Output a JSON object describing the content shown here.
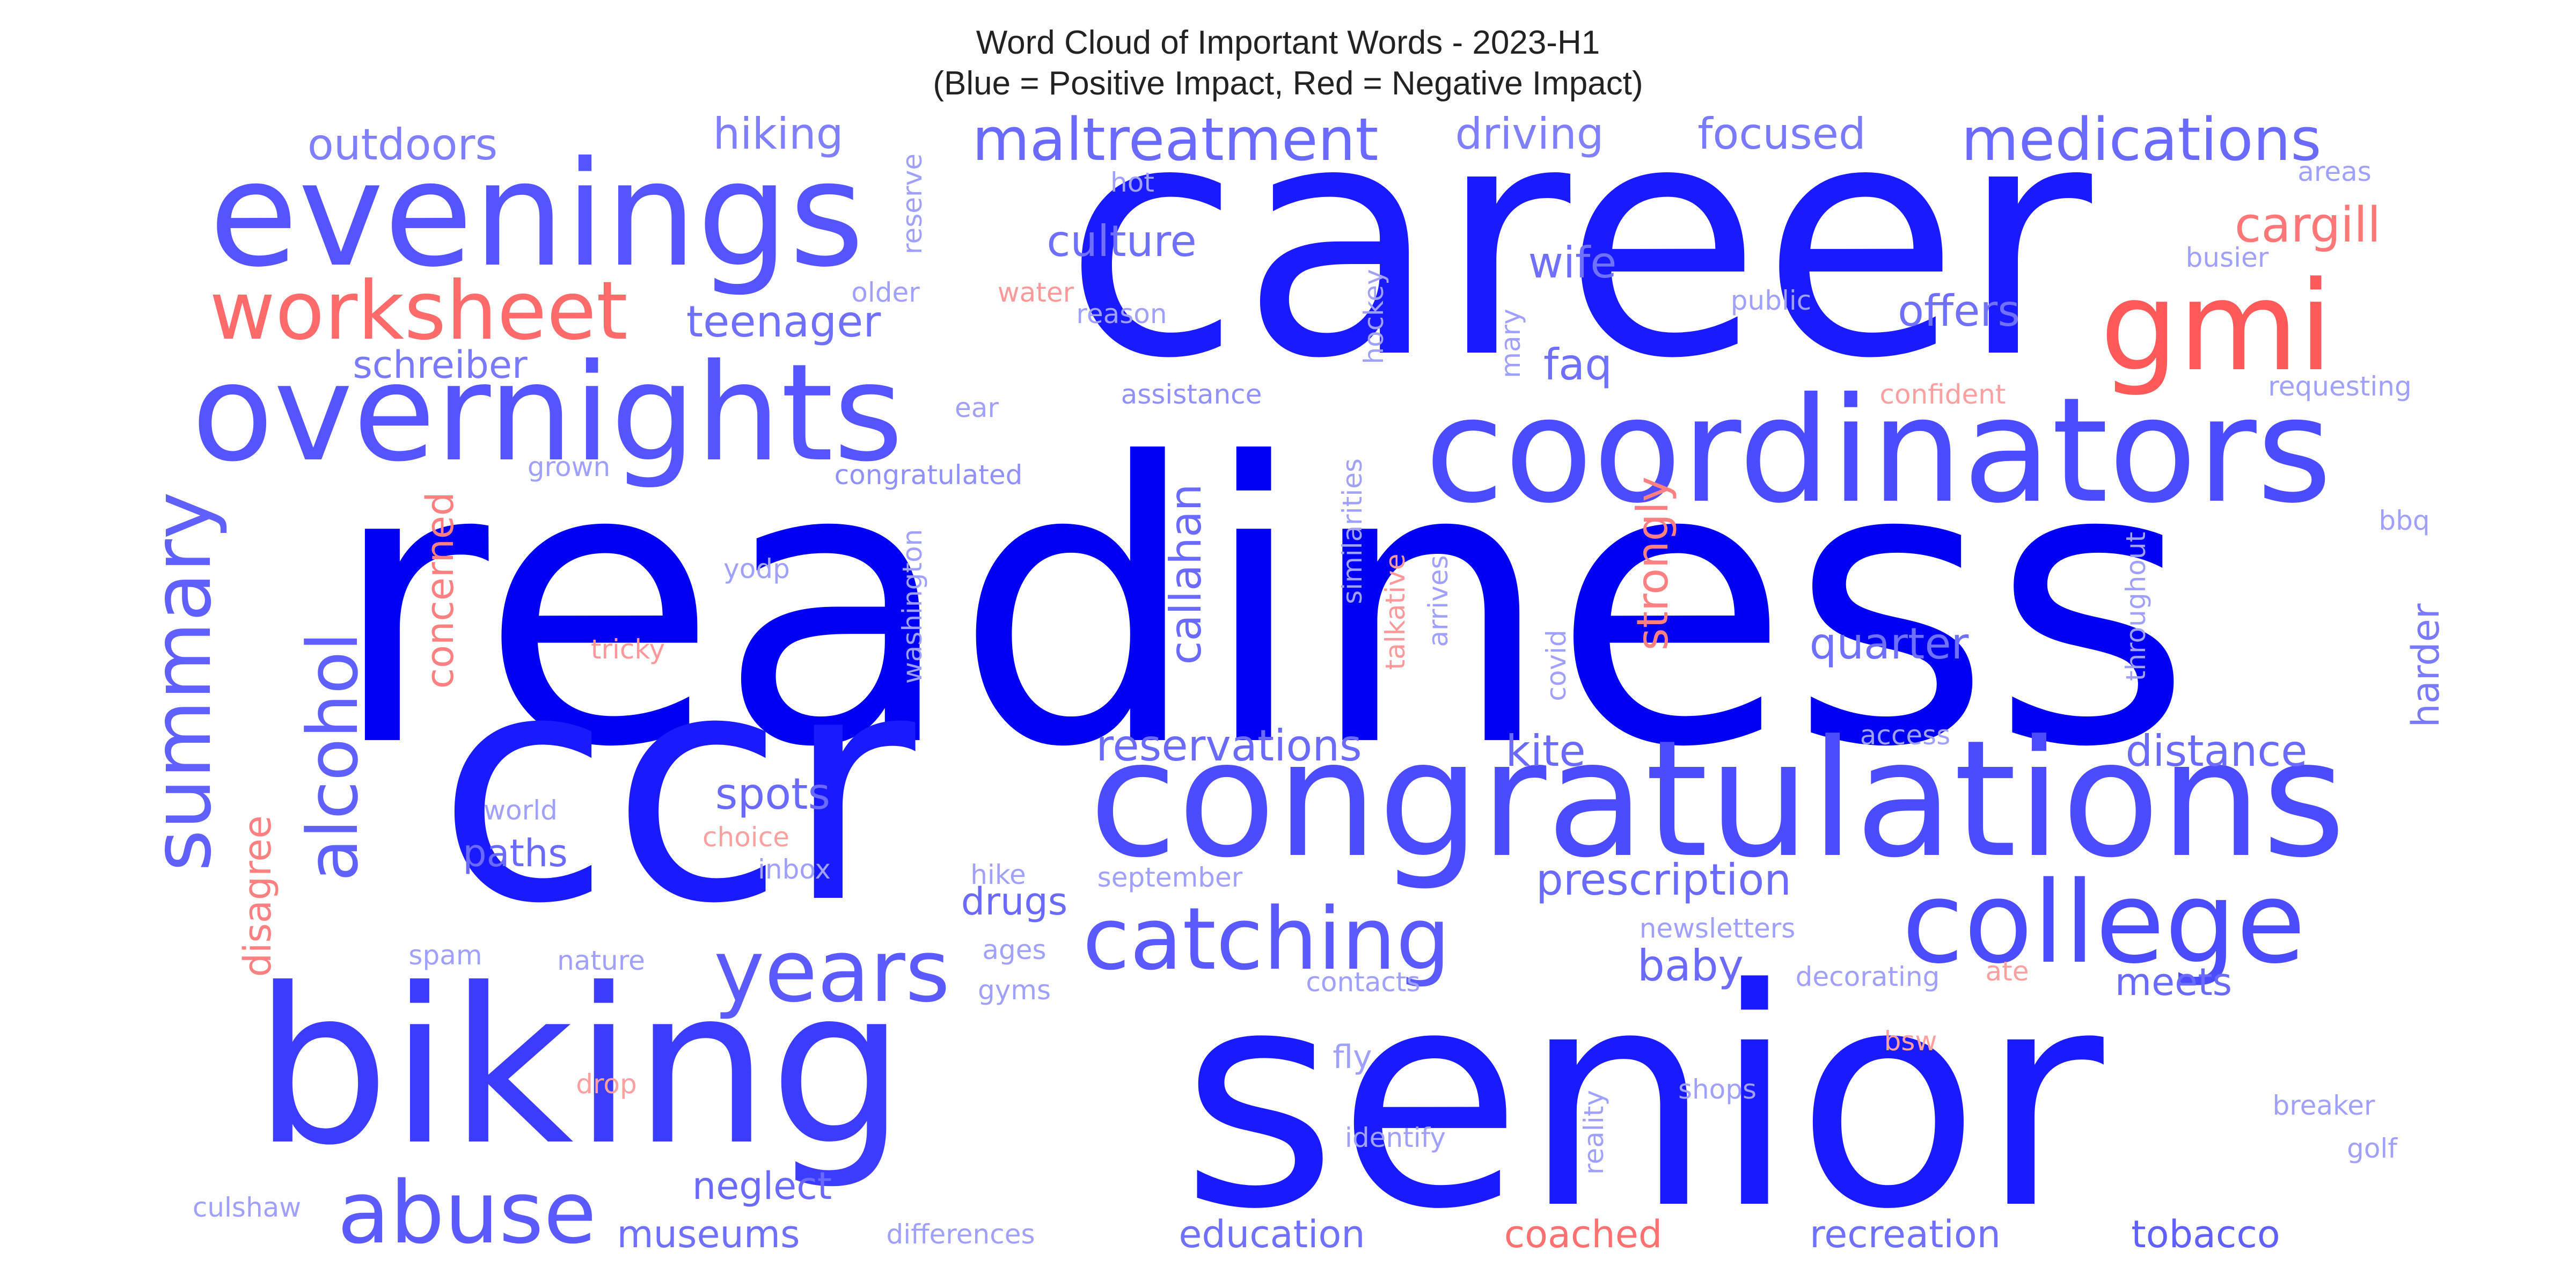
{
  "title": {
    "line1": "Word Cloud of Important Words - 2023-H1",
    "line2": "(Blue = Positive Impact, Red = Negative Impact)"
  },
  "legend_colors": {
    "positive": "#0000ff",
    "negative": "#ff4d4d"
  },
  "words": [
    {
      "text": "readiness",
      "impact": "positive",
      "color": "#0000f2"
    },
    {
      "text": "career",
      "impact": "positive",
      "color": "#1a1aff"
    },
    {
      "text": "senior",
      "impact": "positive",
      "color": "#1a1aff"
    },
    {
      "text": "ccr",
      "impact": "positive",
      "color": "#1a1aff"
    },
    {
      "text": "biking",
      "impact": "positive",
      "color": "#3c3cff"
    },
    {
      "text": "congratulations",
      "impact": "positive",
      "color": "#4c4cff"
    },
    {
      "text": "coordinators",
      "impact": "positive",
      "color": "#4c4cff"
    },
    {
      "text": "evenings",
      "impact": "positive",
      "color": "#5555ff"
    },
    {
      "text": "overnights",
      "impact": "positive",
      "color": "#5555ff"
    },
    {
      "text": "college",
      "impact": "positive",
      "color": "#4c4cff"
    },
    {
      "text": "gmi",
      "impact": "negative",
      "color": "#ff5a5a"
    },
    {
      "text": "worksheet",
      "impact": "negative",
      "color": "#ff6b6b"
    },
    {
      "text": "catching",
      "impact": "positive",
      "color": "#5a5aff"
    },
    {
      "text": "abuse",
      "impact": "positive",
      "color": "#5a5aff"
    },
    {
      "text": "years",
      "impact": "positive",
      "color": "#5a5aff"
    },
    {
      "text": "summary",
      "impact": "positive",
      "color": "#6060ff"
    },
    {
      "text": "alcohol",
      "impact": "positive",
      "color": "#6060ff"
    },
    {
      "text": "maltreatment",
      "impact": "positive",
      "color": "#6a6aff"
    },
    {
      "text": "medications",
      "impact": "positive",
      "color": "#6a6aff"
    },
    {
      "text": "cargill",
      "impact": "negative",
      "color": "#ff7777"
    },
    {
      "text": "outdoors",
      "impact": "positive",
      "color": "#8080ff"
    },
    {
      "text": "hiking",
      "impact": "positive",
      "color": "#8080ff"
    },
    {
      "text": "driving",
      "impact": "positive",
      "color": "#8080ff"
    },
    {
      "text": "focused",
      "impact": "positive",
      "color": "#7a7aff"
    },
    {
      "text": "culture",
      "impact": "positive",
      "color": "#7070ff"
    },
    {
      "text": "teenager",
      "impact": "positive",
      "color": "#7070ff"
    },
    {
      "text": "wife",
      "impact": "positive",
      "color": "#7070ff"
    },
    {
      "text": "offers",
      "impact": "positive",
      "color": "#7070ff"
    },
    {
      "text": "schreiber",
      "impact": "positive",
      "color": "#7a7aff"
    },
    {
      "text": "faq",
      "impact": "positive",
      "color": "#7070ff"
    },
    {
      "text": "callahan",
      "impact": "positive",
      "color": "#6a6aff"
    },
    {
      "text": "strongly",
      "impact": "negative",
      "color": "#ff8080"
    },
    {
      "text": "concerned",
      "impact": "negative",
      "color": "#ff8080"
    },
    {
      "text": "quarter",
      "impact": "positive",
      "color": "#7070ff"
    },
    {
      "text": "harder",
      "impact": "positive",
      "color": "#7a7aff"
    },
    {
      "text": "reservations",
      "impact": "positive",
      "color": "#6a6aff"
    },
    {
      "text": "kite",
      "impact": "positive",
      "color": "#6a6aff"
    },
    {
      "text": "distance",
      "impact": "positive",
      "color": "#6a6aff"
    },
    {
      "text": "spots",
      "impact": "positive",
      "color": "#6a6aff"
    },
    {
      "text": "paths",
      "impact": "positive",
      "color": "#6a6aff"
    },
    {
      "text": "prescription",
      "impact": "positive",
      "color": "#6a6aff"
    },
    {
      "text": "drugs",
      "impact": "positive",
      "color": "#6a6aff"
    },
    {
      "text": "baby",
      "impact": "positive",
      "color": "#6a6aff"
    },
    {
      "text": "meets",
      "impact": "positive",
      "color": "#6a6aff"
    },
    {
      "text": "disagree",
      "impact": "negative",
      "color": "#ff8080"
    },
    {
      "text": "neglect",
      "impact": "positive",
      "color": "#6a6aff"
    },
    {
      "text": "museums",
      "impact": "positive",
      "color": "#7070ff"
    },
    {
      "text": "education",
      "impact": "positive",
      "color": "#7070ff"
    },
    {
      "text": "coached",
      "impact": "negative",
      "color": "#ff7070"
    },
    {
      "text": "recreation",
      "impact": "positive",
      "color": "#7070ff"
    },
    {
      "text": "tobacco",
      "impact": "positive",
      "color": "#6060ff"
    },
    {
      "text": "reserve",
      "impact": "positive",
      "color": "#a0a0ff"
    },
    {
      "text": "hot",
      "impact": "positive",
      "color": "#a0a0ff"
    },
    {
      "text": "areas",
      "impact": "positive",
      "color": "#a0a0ff"
    },
    {
      "text": "older",
      "impact": "positive",
      "color": "#a0a0ff"
    },
    {
      "text": "water",
      "impact": "negative",
      "color": "#ff9999"
    },
    {
      "text": "reason",
      "impact": "positive",
      "color": "#a0a0ff"
    },
    {
      "text": "hockey",
      "impact": "positive",
      "color": "#a0a0ff"
    },
    {
      "text": "mary",
      "impact": "positive",
      "color": "#a0a0ff"
    },
    {
      "text": "public",
      "impact": "positive",
      "color": "#a0a0ff"
    },
    {
      "text": "busier",
      "impact": "positive",
      "color": "#a0a0ff"
    },
    {
      "text": "assistance",
      "impact": "positive",
      "color": "#9090ff"
    },
    {
      "text": "ear",
      "impact": "positive",
      "color": "#a0a0ff"
    },
    {
      "text": "confident",
      "impact": "negative",
      "color": "#ffa0a0"
    },
    {
      "text": "requesting",
      "impact": "positive",
      "color": "#a0a0ff"
    },
    {
      "text": "grown",
      "impact": "positive",
      "color": "#a0a0ff"
    },
    {
      "text": "congratulated",
      "impact": "positive",
      "color": "#9090ff"
    },
    {
      "text": "similarities",
      "impact": "positive",
      "color": "#a0a0ff"
    },
    {
      "text": "talkative",
      "impact": "negative",
      "color": "#ff9999"
    },
    {
      "text": "arrives",
      "impact": "positive",
      "color": "#a0a0ff"
    },
    {
      "text": "washington",
      "impact": "positive",
      "color": "#a0a0ff"
    },
    {
      "text": "yodp",
      "impact": "positive",
      "color": "#a0a0ff"
    },
    {
      "text": "tricky",
      "impact": "negative",
      "color": "#ff9999"
    },
    {
      "text": "covid",
      "impact": "positive",
      "color": "#a0a0ff"
    },
    {
      "text": "throughout",
      "impact": "positive",
      "color": "#a0a0ff"
    },
    {
      "text": "bbq",
      "impact": "positive",
      "color": "#a0a0ff"
    },
    {
      "text": "access",
      "impact": "positive",
      "color": "#a0a0ff"
    },
    {
      "text": "world",
      "impact": "positive",
      "color": "#a0a0ff"
    },
    {
      "text": "choice",
      "impact": "negative",
      "color": "#ffa0a0"
    },
    {
      "text": "inbox",
      "impact": "positive",
      "color": "#a0a0ff"
    },
    {
      "text": "hike",
      "impact": "positive",
      "color": "#a0a0ff"
    },
    {
      "text": "september",
      "impact": "positive",
      "color": "#a0a0ff"
    },
    {
      "text": "spam",
      "impact": "positive",
      "color": "#a0a0ff"
    },
    {
      "text": "nature",
      "impact": "positive",
      "color": "#a0a0ff"
    },
    {
      "text": "ages",
      "impact": "positive",
      "color": "#a0a0ff"
    },
    {
      "text": "gyms",
      "impact": "positive",
      "color": "#a0a0ff"
    },
    {
      "text": "newsletters",
      "impact": "positive",
      "color": "#a0a0ff"
    },
    {
      "text": "contacts",
      "impact": "positive",
      "color": "#a0a0ff"
    },
    {
      "text": "decorating",
      "impact": "positive",
      "color": "#a0a0ff"
    },
    {
      "text": "ate",
      "impact": "negative",
      "color": "#ffa0a0"
    },
    {
      "text": "bsw",
      "impact": "negative",
      "color": "#ffa0a0"
    },
    {
      "text": "drop",
      "impact": "negative",
      "color": "#ffa0a0"
    },
    {
      "text": "fly",
      "impact": "positive",
      "color": "#a0a0ff"
    },
    {
      "text": "reality",
      "impact": "positive",
      "color": "#a0a0ff"
    },
    {
      "text": "shops",
      "impact": "positive",
      "color": "#a0a0ff"
    },
    {
      "text": "breaker",
      "impact": "positive",
      "color": "#a0a0ff"
    },
    {
      "text": "identify",
      "impact": "positive",
      "color": "#a0a0ff"
    },
    {
      "text": "golf",
      "impact": "positive",
      "color": "#a0a0ff"
    },
    {
      "text": "culshaw",
      "impact": "positive",
      "color": "#a0a0ff"
    },
    {
      "text": "differences",
      "impact": "positive",
      "color": "#a0a0ff"
    }
  ]
}
